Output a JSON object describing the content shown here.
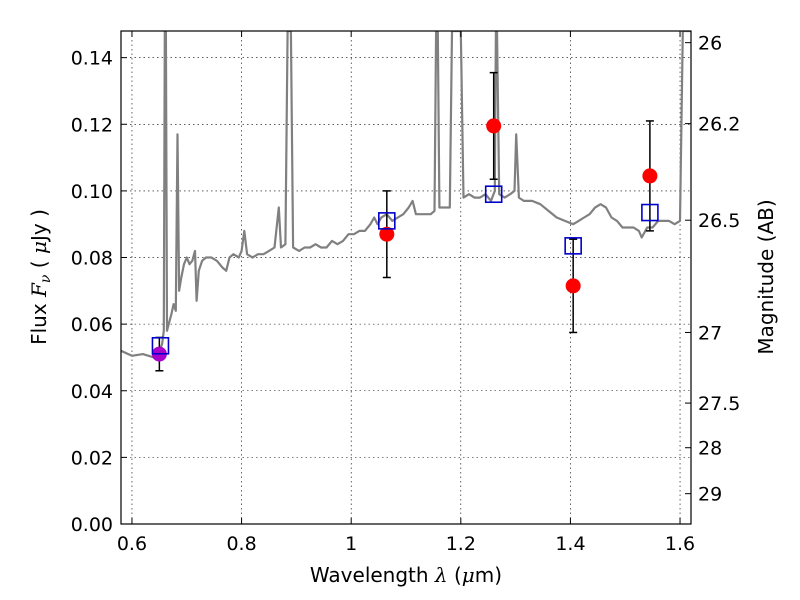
{
  "chart_data": {
    "type": "scatter",
    "title": "",
    "xlabel": "Wavelength  λ (μm)",
    "ylabel": "Flux  F_ν  ( μJy )",
    "ylabel_right": "Magnitude (AB)",
    "xlim": [
      0.58,
      1.62
    ],
    "ylim": [
      0,
      0.148
    ],
    "x_ticks": [
      0.6,
      0.8,
      1.0,
      1.2,
      1.4,
      1.6
    ],
    "x_tick_labels": [
      "0.6",
      "0.8",
      "1",
      "1.2",
      "1.4",
      "1.6"
    ],
    "y_ticks": [
      0.0,
      0.02,
      0.04,
      0.06,
      0.08,
      0.1,
      0.12,
      0.14
    ],
    "y_tick_labels": [
      "0.00",
      "0.02",
      "0.04",
      "0.06",
      "0.08",
      "0.10",
      "0.12",
      "0.14"
    ],
    "right_ticks": [
      {
        "label": "26",
        "flux": 0.1445
      },
      {
        "label": "26.2",
        "flux": 0.1202
      },
      {
        "label": "26.5",
        "flux": 0.0912
      },
      {
        "label": "27",
        "flux": 0.0575
      },
      {
        "label": "27.5",
        "flux": 0.0363
      },
      {
        "label": "28",
        "flux": 0.0229
      },
      {
        "label": "29",
        "flux": 0.0091
      }
    ],
    "grid": true,
    "colors": {
      "spectrum": "#808080",
      "observed": "#ff0000",
      "observed_first": "#aa00cc",
      "model": "#0000cc",
      "errorbar": "#000000"
    },
    "series": [
      {
        "type": "line",
        "points": [
          [
            0.58,
            0.052
          ],
          [
            0.6,
            0.0505
          ],
          [
            0.62,
            0.051
          ],
          [
            0.64,
            0.05
          ],
          [
            0.65,
            0.052
          ],
          [
            0.655,
            0.054
          ],
          [
            0.658,
            0.058
          ],
          [
            0.66,
            0.148
          ],
          [
            0.662,
            0.148
          ],
          [
            0.664,
            0.058
          ],
          [
            0.667,
            0.06
          ],
          [
            0.672,
            0.063
          ],
          [
            0.676,
            0.066
          ],
          [
            0.68,
            0.064
          ],
          [
            0.683,
            0.117
          ],
          [
            0.686,
            0.07
          ],
          [
            0.69,
            0.074
          ],
          [
            0.695,
            0.078
          ],
          [
            0.7,
            0.08
          ],
          [
            0.705,
            0.078
          ],
          [
            0.71,
            0.079
          ],
          [
            0.715,
            0.082
          ],
          [
            0.718,
            0.067
          ],
          [
            0.722,
            0.076
          ],
          [
            0.728,
            0.079
          ],
          [
            0.735,
            0.08
          ],
          [
            0.745,
            0.08
          ],
          [
            0.755,
            0.079
          ],
          [
            0.765,
            0.077
          ],
          [
            0.772,
            0.076
          ],
          [
            0.778,
            0.08
          ],
          [
            0.785,
            0.081
          ],
          [
            0.795,
            0.08
          ],
          [
            0.8,
            0.082
          ],
          [
            0.805,
            0.088
          ],
          [
            0.81,
            0.081
          ],
          [
            0.82,
            0.08
          ],
          [
            0.83,
            0.081
          ],
          [
            0.84,
            0.081
          ],
          [
            0.85,
            0.082
          ],
          [
            0.86,
            0.083
          ],
          [
            0.868,
            0.095
          ],
          [
            0.872,
            0.083
          ],
          [
            0.88,
            0.084
          ],
          [
            0.884,
            0.148
          ],
          [
            0.89,
            0.148
          ],
          [
            0.894,
            0.083
          ],
          [
            0.905,
            0.082
          ],
          [
            0.915,
            0.083
          ],
          [
            0.925,
            0.083
          ],
          [
            0.935,
            0.084
          ],
          [
            0.945,
            0.083
          ],
          [
            0.955,
            0.083
          ],
          [
            0.965,
            0.085
          ],
          [
            0.975,
            0.084
          ],
          [
            0.985,
            0.085
          ],
          [
            0.995,
            0.087
          ],
          [
            1.005,
            0.087
          ],
          [
            1.015,
            0.088
          ],
          [
            1.025,
            0.088
          ],
          [
            1.035,
            0.09
          ],
          [
            1.042,
            0.092
          ],
          [
            1.048,
            0.09
          ],
          [
            1.055,
            0.092
          ],
          [
            1.065,
            0.093
          ],
          [
            1.075,
            0.091
          ],
          [
            1.085,
            0.092
          ],
          [
            1.095,
            0.093
          ],
          [
            1.105,
            0.095
          ],
          [
            1.112,
            0.097
          ],
          [
            1.118,
            0.093
          ],
          [
            1.125,
            0.093
          ],
          [
            1.135,
            0.093
          ],
          [
            1.145,
            0.093
          ],
          [
            1.152,
            0.094
          ],
          [
            1.155,
            0.148
          ],
          [
            1.158,
            0.148
          ],
          [
            1.161,
            0.095
          ],
          [
            1.17,
            0.095
          ],
          [
            1.18,
            0.095
          ],
          [
            1.184,
            0.148
          ],
          [
            1.2,
            0.148
          ],
          [
            1.205,
            0.098
          ],
          [
            1.215,
            0.099
          ],
          [
            1.225,
            0.098
          ],
          [
            1.235,
            0.098
          ],
          [
            1.245,
            0.099
          ],
          [
            1.255,
            0.097
          ],
          [
            1.262,
            0.1
          ],
          [
            1.264,
            0.148
          ],
          [
            1.266,
            0.148
          ],
          [
            1.27,
            0.099
          ],
          [
            1.28,
            0.098
          ],
          [
            1.29,
            0.099
          ],
          [
            1.298,
            0.1
          ],
          [
            1.301,
            0.117
          ],
          [
            1.306,
            0.098
          ],
          [
            1.315,
            0.097
          ],
          [
            1.33,
            0.097
          ],
          [
            1.345,
            0.096
          ],
          [
            1.36,
            0.094
          ],
          [
            1.375,
            0.092
          ],
          [
            1.39,
            0.091
          ],
          [
            1.405,
            0.09
          ],
          [
            1.415,
            0.091
          ],
          [
            1.425,
            0.092
          ],
          [
            1.435,
            0.093
          ],
          [
            1.445,
            0.095
          ],
          [
            1.455,
            0.096
          ],
          [
            1.465,
            0.095
          ],
          [
            1.475,
            0.092
          ],
          [
            1.485,
            0.091
          ],
          [
            1.495,
            0.089
          ],
          [
            1.505,
            0.089
          ],
          [
            1.515,
            0.089
          ],
          [
            1.525,
            0.088
          ],
          [
            1.53,
            0.086
          ],
          [
            1.54,
            0.089
          ],
          [
            1.55,
            0.089
          ],
          [
            1.56,
            0.091
          ],
          [
            1.57,
            0.091
          ],
          [
            1.58,
            0.091
          ],
          [
            1.59,
            0.09
          ],
          [
            1.6,
            0.091
          ],
          [
            1.605,
            0.148
          ],
          [
            1.62,
            0.148
          ]
        ]
      },
      {
        "type": "points_with_error",
        "points": [
          {
            "x": 0.65,
            "y": 0.051,
            "err": 0.005
          },
          {
            "x": 1.065,
            "y": 0.087,
            "err": 0.013
          },
          {
            "x": 1.26,
            "y": 0.1195,
            "err": 0.016
          },
          {
            "x": 1.405,
            "y": 0.0715,
            "err": 0.014
          },
          {
            "x": 1.545,
            "y": 0.1045,
            "err": 0.0165
          }
        ]
      },
      {
        "type": "squares",
        "points": [
          {
            "x": 0.652,
            "y": 0.0535
          },
          {
            "x": 1.065,
            "y": 0.091
          },
          {
            "x": 1.26,
            "y": 0.099
          },
          {
            "x": 1.405,
            "y": 0.0835
          },
          {
            "x": 1.545,
            "y": 0.0935
          }
        ]
      }
    ]
  }
}
